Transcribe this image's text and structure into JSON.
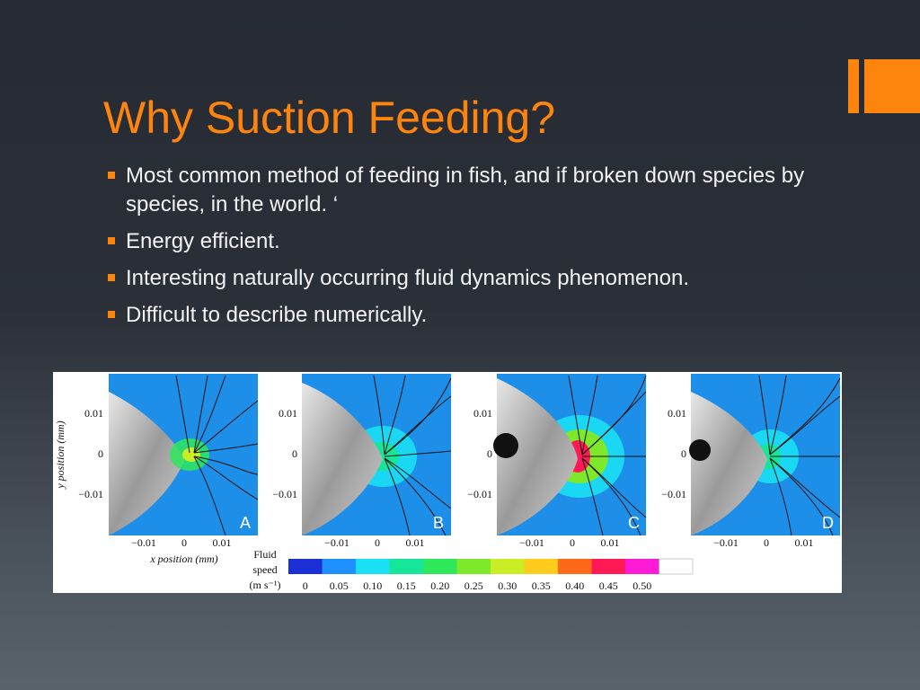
{
  "slide": {
    "title": "Why Suction Feeding?",
    "accent_color": "#fd850e",
    "bullets": [
      "Most common method of feeding in fish, and if broken down species by species, in the world. ‘",
      "Energy efficient.",
      "Interesting naturally occurring fluid dynamics phenomenon.",
      "Difficult to describe numerically."
    ]
  },
  "figure": {
    "y_axis_label": "y position (mm)",
    "x_axis_label": "x position (mm)",
    "y_ticks": [
      "0.01",
      "0",
      "−0.01"
    ],
    "x_ticks": [
      "−0.01",
      "0",
      "0.01"
    ],
    "panels": [
      "A",
      "B",
      "C",
      "D"
    ],
    "colorbar": {
      "label_line1": "Fluid",
      "label_line2": "speed",
      "label_line3": "(m s⁻¹)",
      "ticks": [
        "0",
        "0.05",
        "0.10",
        "0.15",
        "0.20",
        "0.25",
        "0.30",
        "0.35",
        "0.40",
        "0.45",
        "0.50"
      ],
      "colors": [
        "#1b2fd6",
        "#1e90ff",
        "#19e0f5",
        "#16e69a",
        "#2ee85a",
        "#7ee82a",
        "#c9ee23",
        "#ffcc1e",
        "#ff6a1a",
        "#ff1a55",
        "#ff1ad6",
        "#ffffff"
      ]
    }
  }
}
